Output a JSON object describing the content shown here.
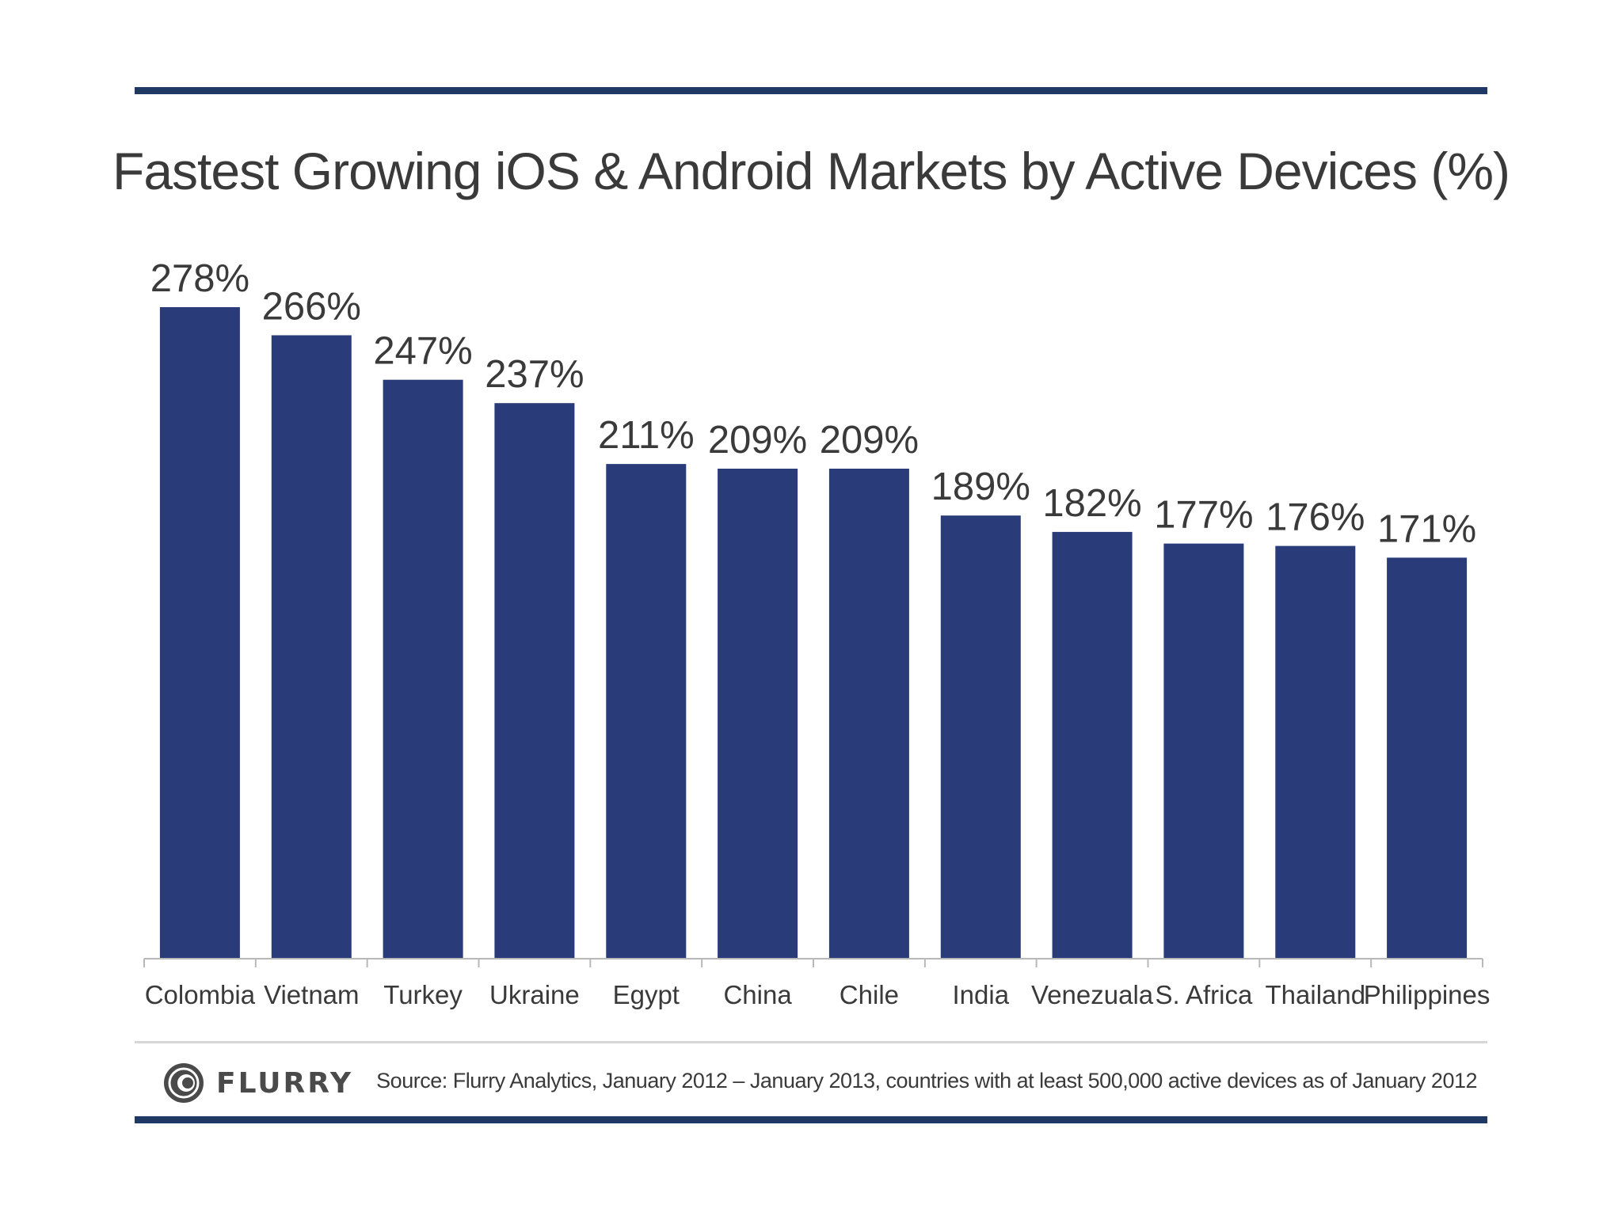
{
  "chart_data": {
    "type": "bar",
    "title": "Fastest Growing iOS & Android Markets by Active Devices (%)",
    "categories": [
      "Colombia",
      "Vietnam",
      "Turkey",
      "Ukraine",
      "Egypt",
      "China",
      "Chile",
      "India",
      "Venezuala",
      "S. Africa",
      "Thailand",
      "Philippines"
    ],
    "values": [
      278,
      266,
      247,
      237,
      211,
      209,
      209,
      189,
      182,
      177,
      176,
      171
    ],
    "value_labels": [
      "278%",
      "266%",
      "247%",
      "237%",
      "211%",
      "209%",
      "209%",
      "189%",
      "182%",
      "177%",
      "176%",
      "171%"
    ],
    "xlabel": "",
    "ylabel": "",
    "ylim": [
      0,
      278
    ],
    "grid": false,
    "bar_color": "#2a3b7a"
  },
  "footer": {
    "logo_text": "FLURRY",
    "source": "Source: Flurry Analytics, January 2012 – January 2013, countries with at least 500,000 active devices as of January 2012"
  },
  "colors": {
    "rule": "#1f3864",
    "text": "#3a3a3a"
  }
}
